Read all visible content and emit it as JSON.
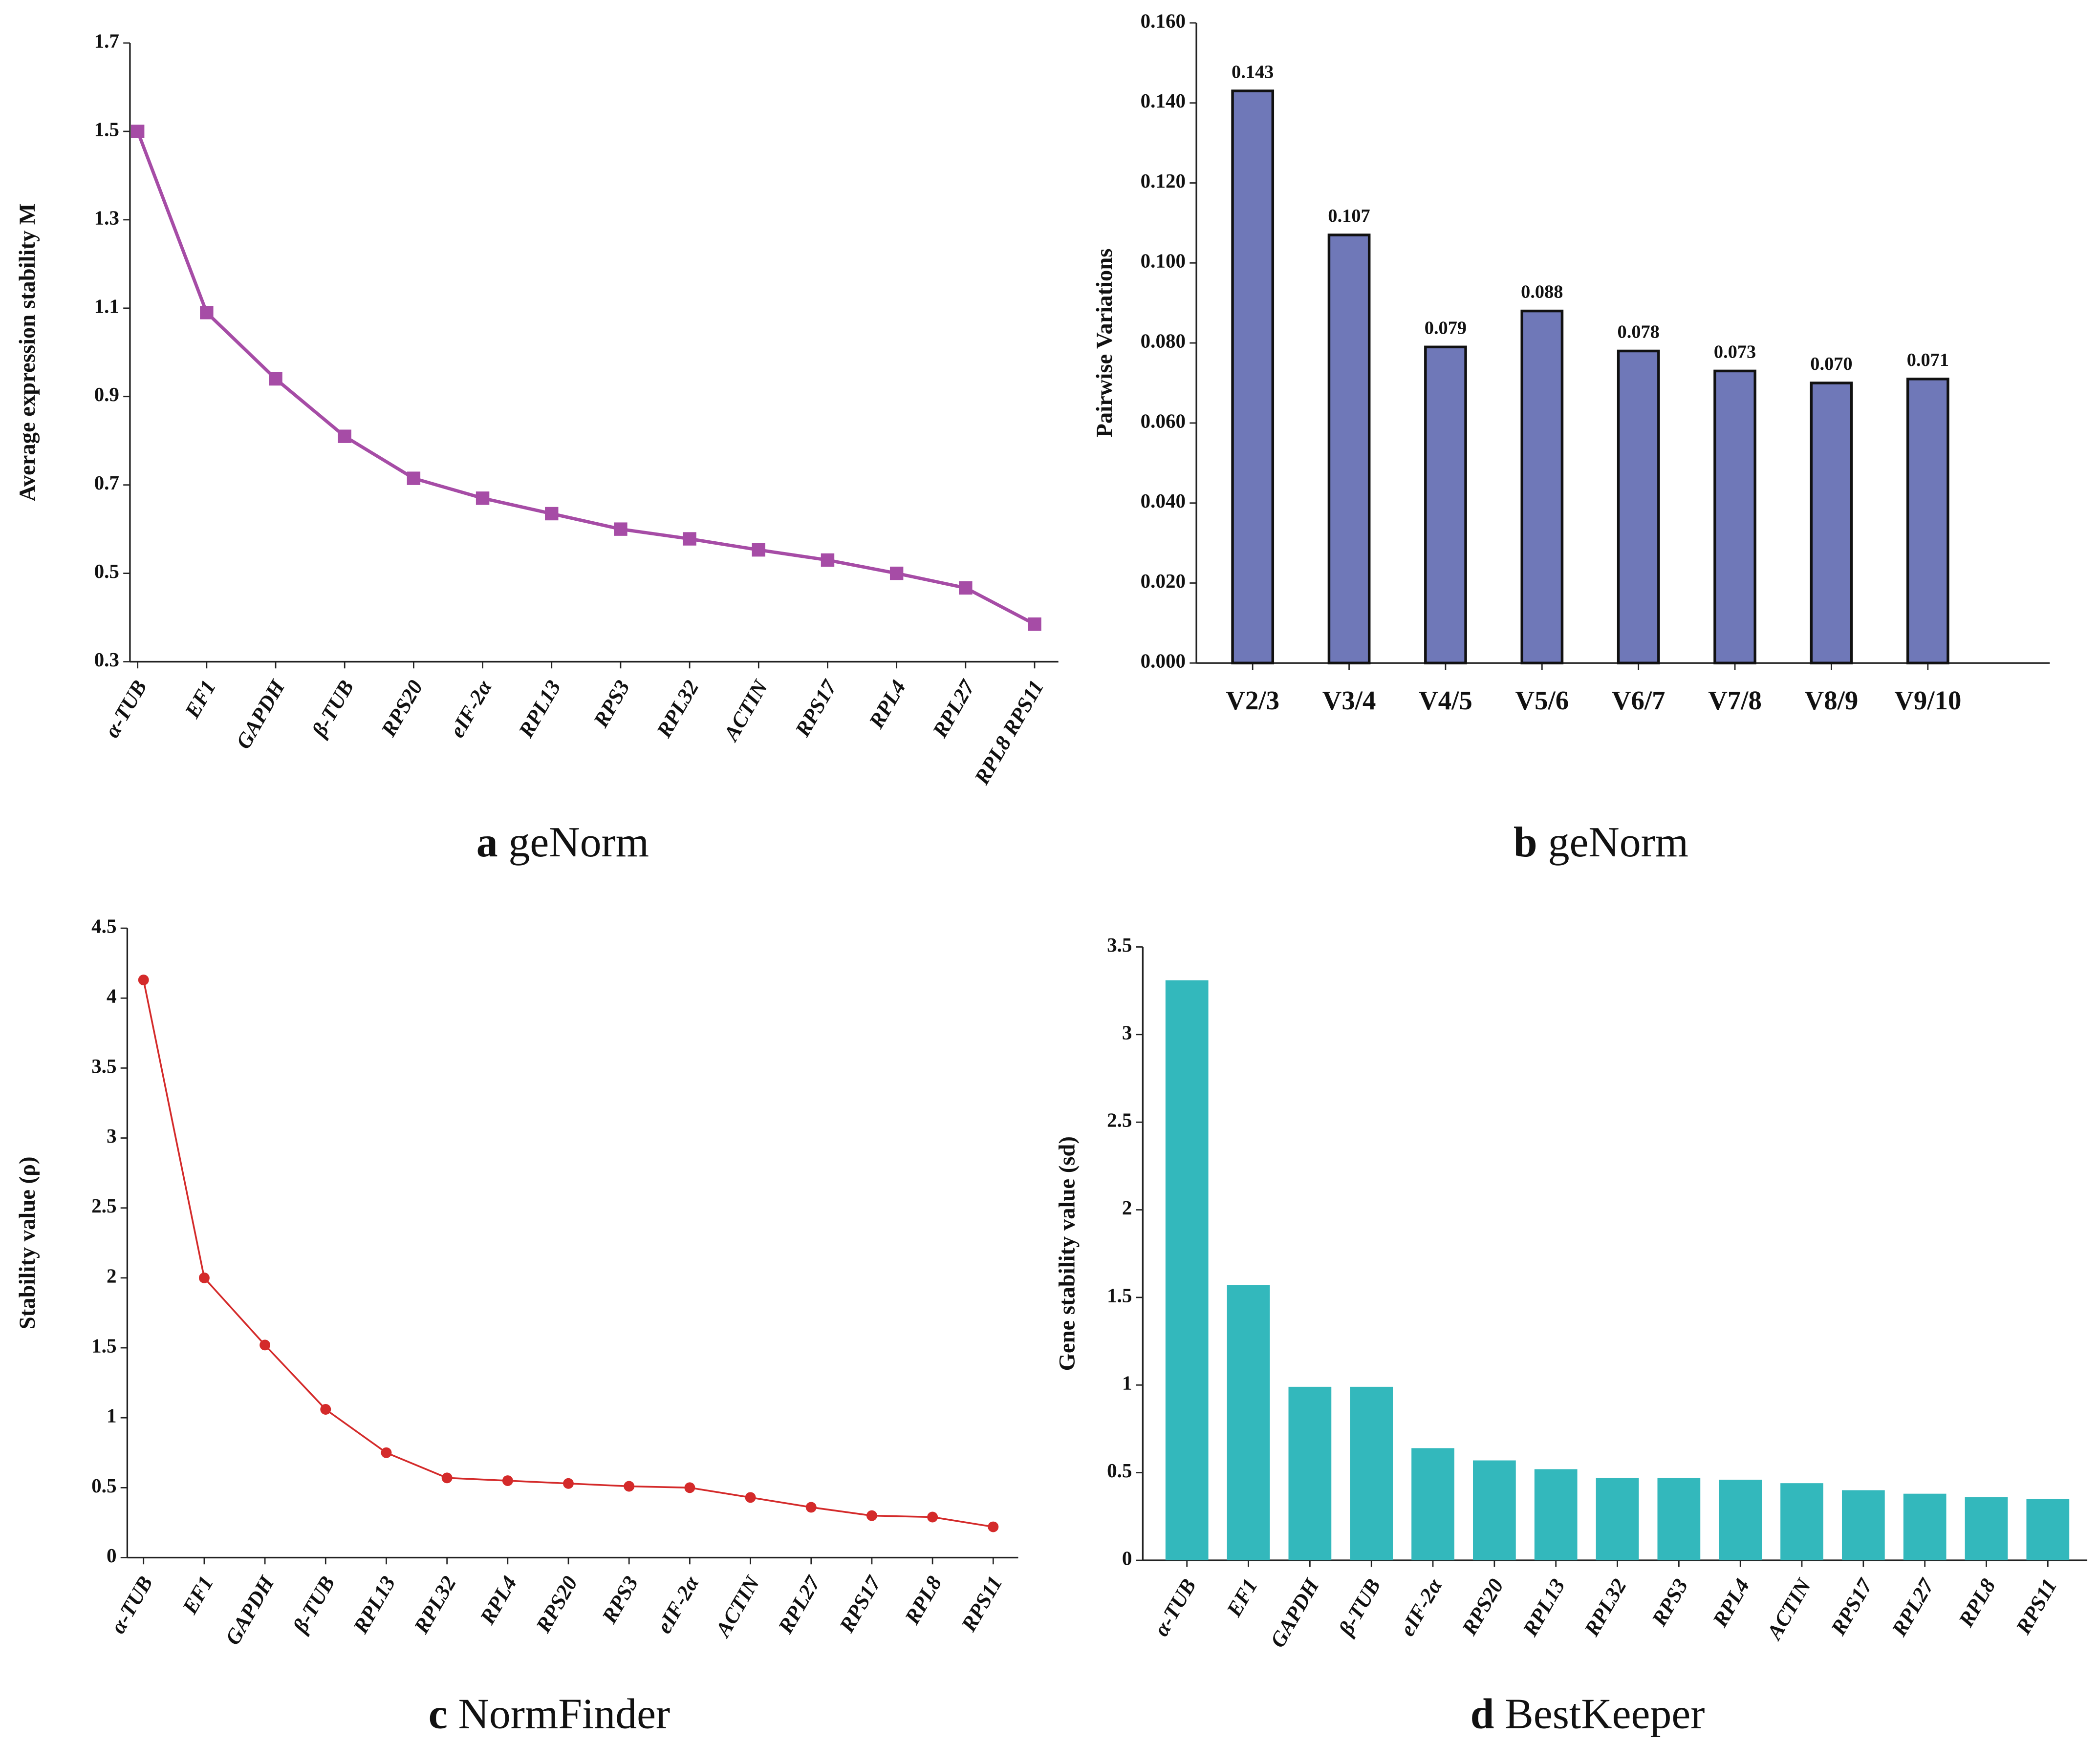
{
  "chart_data": [
    {
      "type": "line",
      "panel": "a",
      "caption": "geNorm",
      "y_label": "Average expression stability M",
      "categories": [
        "α-TUB",
        "EF1",
        "GAPDH",
        "β-TUB",
        "RPS20",
        "eIF-2α",
        "RPL13",
        "RPS3",
        "RPL32",
        "ACTIN",
        "RPS17",
        "RPL4",
        "RPL27",
        "RPL8 RPS11"
      ],
      "values": [
        1.5,
        1.09,
        0.94,
        0.81,
        0.715,
        0.67,
        0.635,
        0.6,
        0.578,
        0.553,
        0.53,
        0.5,
        0.467,
        0.385
      ],
      "color": "#a64ca6",
      "marker": "square",
      "ylim": [
        0.3,
        1.7
      ],
      "yticks": [
        0.3,
        0.5,
        0.7,
        0.9,
        1.1,
        1.3,
        1.5,
        1.7
      ]
    },
    {
      "type": "bar",
      "panel": "b",
      "caption": "geNorm",
      "y_label": "Pairwise Variations",
      "categories": [
        "V2/3",
        "V3/4",
        "V4/5",
        "V5/6",
        "V6/7",
        "V7/8",
        "V8/9",
        "V9/10"
      ],
      "values": [
        0.143,
        0.107,
        0.079,
        0.088,
        0.078,
        0.073,
        0.07,
        0.071
      ],
      "value_labels": [
        "0.143",
        "0.107",
        "0.079",
        "0.088",
        "0.078",
        "0.073",
        "0.070",
        "0.071"
      ],
      "color": "#6f78b8",
      "bar_outline": true,
      "ylim": [
        0,
        0.16
      ],
      "yticks": [
        {
          "value": 0,
          "label": "0.000"
        },
        {
          "value": 0.02,
          "label": "0.020"
        },
        {
          "value": 0.04,
          "label": "0.040"
        },
        {
          "value": 0.06,
          "label": "0.060"
        },
        {
          "value": 0.08,
          "label": "0.080"
        },
        {
          "value": 0.1,
          "label": "0.100"
        },
        {
          "value": 0.12,
          "label": "0.120"
        },
        {
          "value": 0.14,
          "label": "0.140"
        },
        {
          "value": 0.16,
          "label": "0.160"
        }
      ]
    },
    {
      "type": "line",
      "panel": "c",
      "caption": "NormFinder",
      "y_label": "Stability value (ρ)",
      "categories": [
        "α-TUB",
        "EF1",
        "GAPDH",
        "β-TUB",
        "RPL13",
        "RPL32",
        "RPL4",
        "RPS20",
        "RPS3",
        "eIF-2α",
        "ACTIN",
        "RPL27",
        "RPS17",
        "RPL8",
        "RPS11"
      ],
      "values": [
        4.13,
        2.0,
        1.52,
        1.06,
        0.75,
        0.57,
        0.55,
        0.53,
        0.51,
        0.5,
        0.43,
        0.36,
        0.3,
        0.29,
        0.22
      ],
      "color": "#d42a2a",
      "marker": "circle",
      "ylim": [
        0,
        4.5
      ],
      "yticks": [
        0,
        0.5,
        1,
        1.5,
        2,
        2.5,
        3,
        3.5,
        4,
        4.5
      ]
    },
    {
      "type": "bar",
      "panel": "d",
      "caption": "BestKeeper",
      "y_label": "Gene stability value (sd)",
      "categories": [
        "α-TUB",
        "EF1",
        "GAPDH",
        "β-TUB",
        "eIF-2α",
        "RPS20",
        "RPL13",
        "RPL32",
        "RPS3",
        "RPL4",
        "ACTIN",
        "RPS17",
        "RPL27",
        "RPL8",
        "RPS11"
      ],
      "values": [
        3.31,
        1.57,
        0.99,
        0.99,
        0.64,
        0.57,
        0.52,
        0.47,
        0.47,
        0.46,
        0.44,
        0.4,
        0.38,
        0.36,
        0.35
      ],
      "color": "#33b8bc",
      "bar_outline": false,
      "ylim": [
        0,
        3.5
      ],
      "yticks": [
        0,
        0.5,
        1,
        1.5,
        2,
        2.5,
        3,
        3.5
      ]
    }
  ]
}
